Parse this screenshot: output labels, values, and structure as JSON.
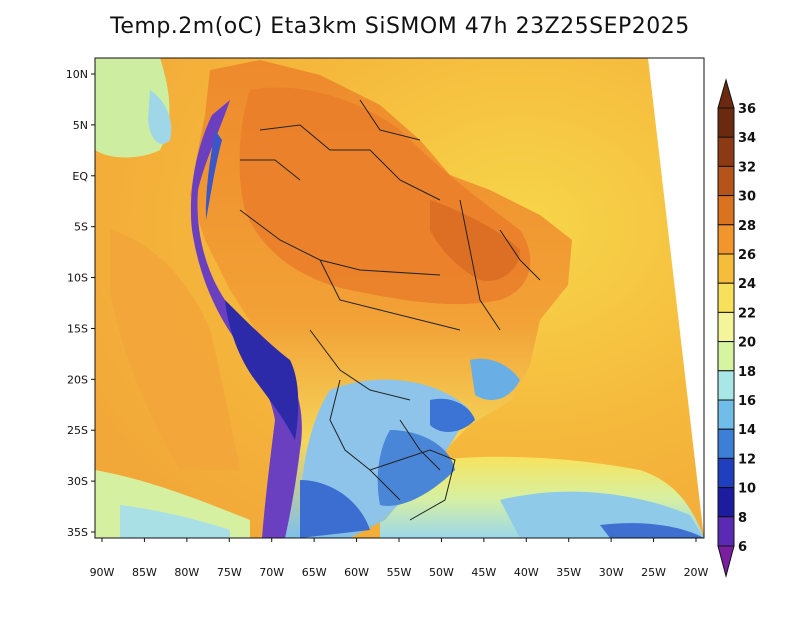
{
  "title": "Temp.2m(oC) Eta3km SiSMOM 47h 23Z25SEP2025",
  "map": {
    "lon_labels": [
      "90W",
      "85W",
      "80W",
      "75W",
      "70W",
      "65W",
      "60W",
      "55W",
      "50W",
      "45W",
      "40W",
      "35W",
      "30W",
      "25W",
      "20W"
    ],
    "lat_labels": [
      "10N",
      "5N",
      "EQ",
      "5S",
      "10S",
      "15S",
      "20S",
      "25S",
      "30S",
      "35S"
    ]
  },
  "colorbar": {
    "levels": [
      "36",
      "34",
      "32",
      "30",
      "28",
      "26",
      "24",
      "22",
      "20",
      "18",
      "16",
      "14",
      "12",
      "10",
      "8",
      "6"
    ],
    "colors": [
      "#6b2a10",
      "#8c3a14",
      "#b5541a",
      "#d9731f",
      "#f0962c",
      "#f5bd3a",
      "#f7e15a",
      "#f4f59a",
      "#d6f5a0",
      "#a9e6e8",
      "#6fbde8",
      "#3b7fd6",
      "#1f3fbf",
      "#1b1c9e",
      "#5a2ab5",
      "#7a1fa0"
    ]
  }
}
